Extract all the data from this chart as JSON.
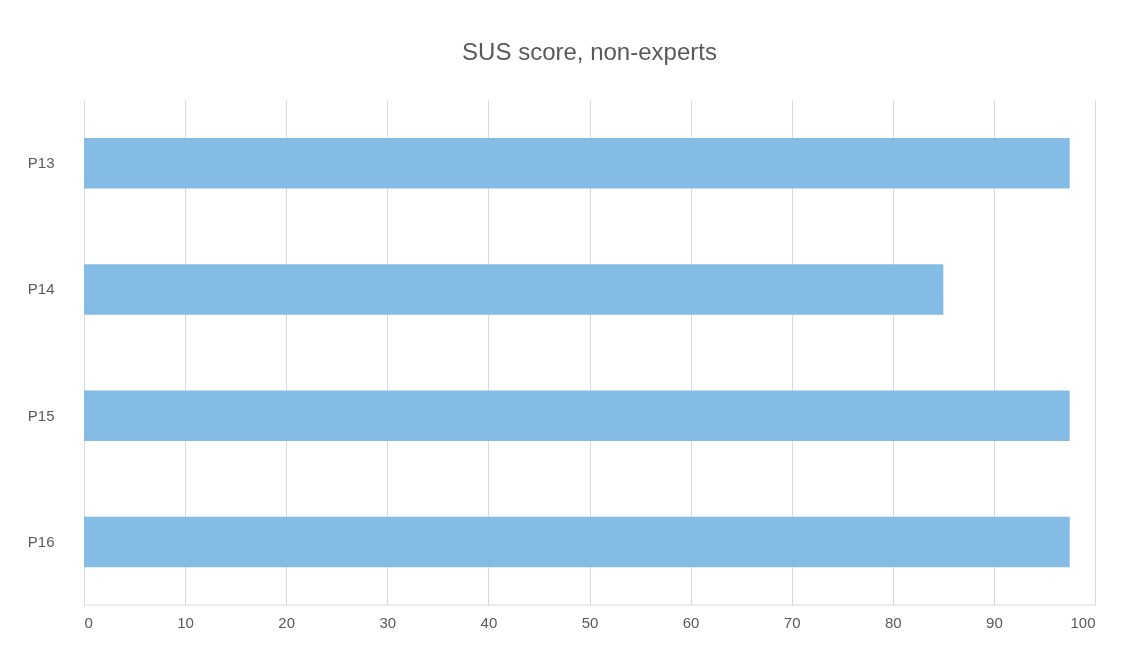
{
  "chart_data": {
    "type": "bar",
    "orientation": "horizontal",
    "title": "SUS score, non-experts",
    "categories": [
      "P13",
      "P14",
      "P15",
      "P16"
    ],
    "values": [
      97.5,
      85,
      97.5,
      97.5
    ],
    "color": "#85bce6",
    "xlim": [
      0,
      100
    ],
    "xticks": [
      0,
      10,
      20,
      30,
      40,
      50,
      60,
      70,
      80,
      90,
      100
    ],
    "grid": "x"
  }
}
